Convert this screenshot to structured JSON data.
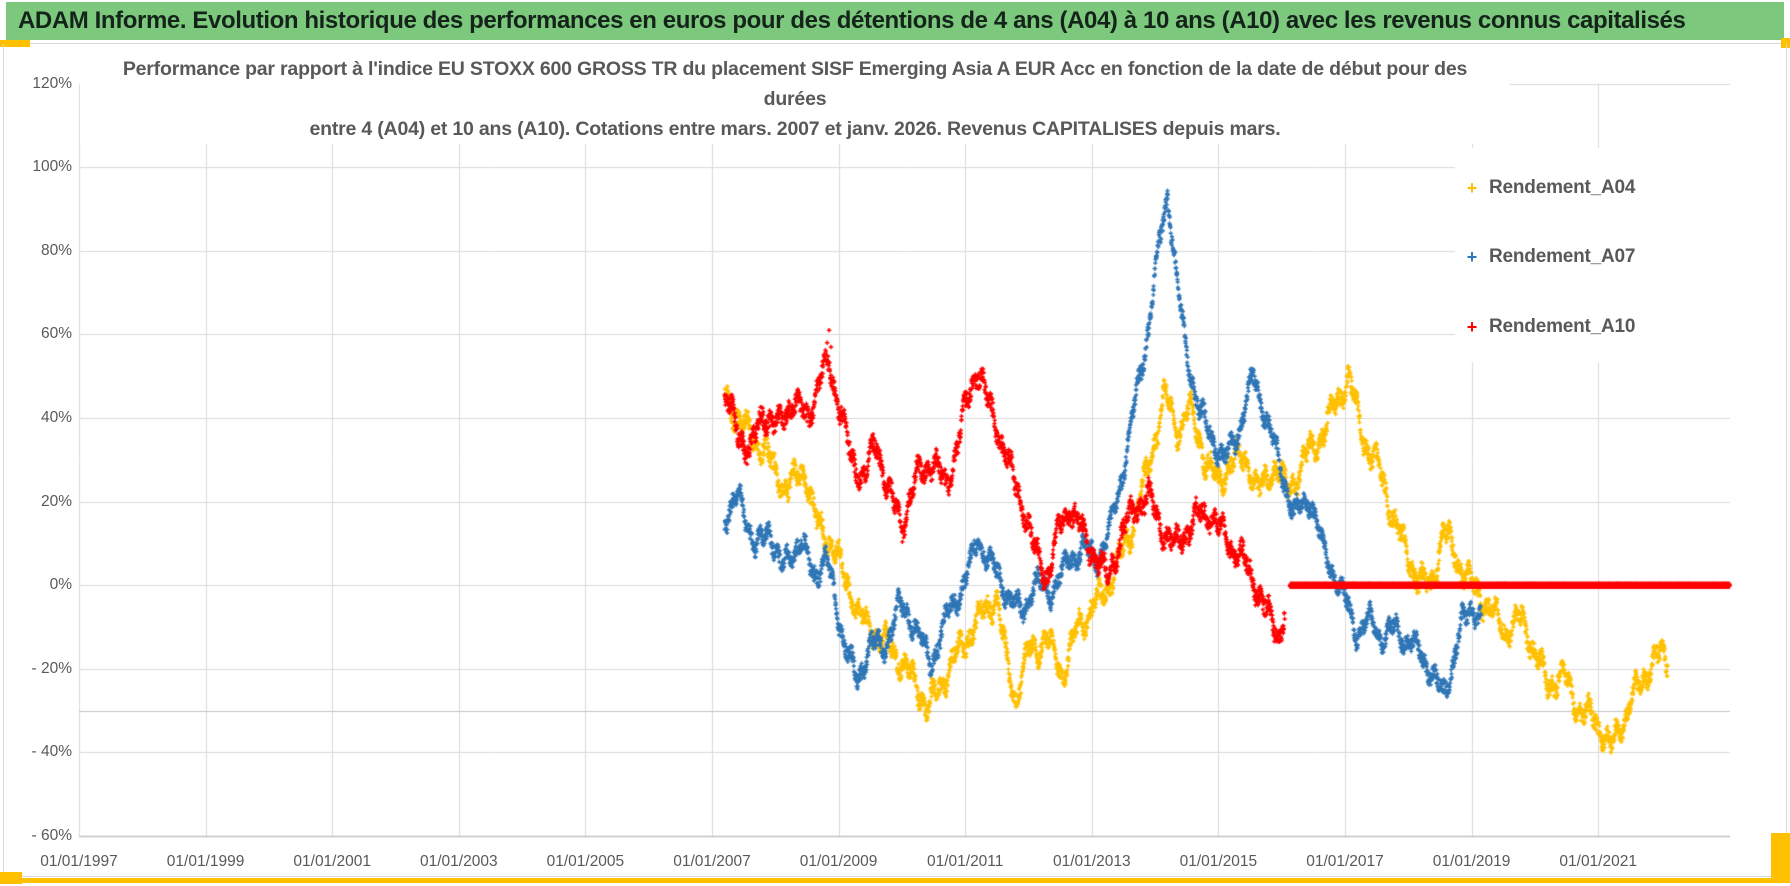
{
  "banner": {
    "text": "ADAM Informe. Evolution historique des performances en euros pour des détentions de 4 ans (A04) à 10 ans (A10) avec les revenus connus capitalisés",
    "bg_color": "#7CC97E"
  },
  "accent_color": "#FFC000",
  "chart_data": {
    "type": "scatter",
    "title_lines": [
      "Performance par rapport à l'indice EU STOXX 600 GROSS TR  du placement SISF Emerging Asia A EUR Acc en fonction de la date de début pour des",
      "durées",
      "entre 4 (A04) et 10 ans (A10). Cotations entre mars. 2007 et janv. 2026. Revenus CAPITALISES depuis mars."
    ],
    "x_axis": {
      "tick_labels": [
        "01/01/1997",
        "01/01/1999",
        "01/01/2001",
        "01/01/2003",
        "01/01/2005",
        "01/01/2007",
        "01/01/2009",
        "01/01/2011",
        "01/01/2013",
        "01/01/2015",
        "01/01/2017",
        "01/01/2019",
        "01/01/2021"
      ],
      "tick_years": [
        1997,
        1999,
        2001,
        2003,
        2005,
        2007,
        2009,
        2011,
        2013,
        2015,
        2017,
        2019,
        2021
      ],
      "range_years": [
        1997.0,
        2023.1
      ],
      "gridlines": true
    },
    "y_axis": {
      "ticks": [
        {
          "label": "120%",
          "value": 120
        },
        {
          "label": "100%",
          "value": 100
        },
        {
          "label": "80%",
          "value": 80
        },
        {
          "label": "60%",
          "value": 60
        },
        {
          "label": "40%",
          "value": 40
        },
        {
          "label": "20%",
          "value": 20
        },
        {
          "label": "0%",
          "value": 0
        },
        {
          "label": "- 20%",
          "value": -20
        },
        {
          "label": "- 40%",
          "value": -40
        },
        {
          "label": "- 60%",
          "value": -60
        }
      ],
      "range": [
        -60,
        120
      ],
      "extra_crossing_line_value": -30,
      "gridlines": true
    },
    "legend": {
      "position": "overlay-right",
      "entries": [
        {
          "label": "Rendement_A04",
          "marker": "+",
          "color": "#FFC000"
        },
        {
          "label": "Rendement_A07",
          "marker": "+",
          "color": "#2E75B6"
        },
        {
          "label": "Rendement_A10",
          "marker": "+",
          "color": "#FF0000"
        }
      ]
    },
    "series": [
      {
        "name": "Rendement_A04",
        "color": "#FFC000",
        "marker": "plus",
        "spread_pct": 3.5,
        "points_per_year": 255,
        "anchors": [
          [
            2007.2,
            45
          ],
          [
            2007.5,
            38
          ],
          [
            2007.8,
            33
          ],
          [
            2008.0,
            27
          ],
          [
            2008.2,
            23
          ],
          [
            2008.45,
            28
          ],
          [
            2008.65,
            15
          ],
          [
            2008.9,
            10
          ],
          [
            2009.1,
            2
          ],
          [
            2009.35,
            -8
          ],
          [
            2009.6,
            -12
          ],
          [
            2009.9,
            -16
          ],
          [
            2010.15,
            -22
          ],
          [
            2010.4,
            -29
          ],
          [
            2010.55,
            -26
          ],
          [
            2010.8,
            -18
          ],
          [
            2011.1,
            -11
          ],
          [
            2011.3,
            -6
          ],
          [
            2011.5,
            -3
          ],
          [
            2011.65,
            -18
          ],
          [
            2011.8,
            -27
          ],
          [
            2012.0,
            -16
          ],
          [
            2012.3,
            -13
          ],
          [
            2012.55,
            -21
          ],
          [
            2012.8,
            -9
          ],
          [
            2013.1,
            -4
          ],
          [
            2013.35,
            3
          ],
          [
            2013.6,
            12
          ],
          [
            2013.9,
            28
          ],
          [
            2014.15,
            46
          ],
          [
            2014.35,
            37
          ],
          [
            2014.55,
            42
          ],
          [
            2014.8,
            30
          ],
          [
            2015.0,
            24
          ],
          [
            2015.2,
            30
          ],
          [
            2015.45,
            30
          ],
          [
            2015.65,
            22
          ],
          [
            2015.9,
            29
          ],
          [
            2016.1,
            22
          ],
          [
            2016.35,
            30
          ],
          [
            2016.6,
            35
          ],
          [
            2016.85,
            43
          ],
          [
            2017.05,
            50
          ],
          [
            2017.3,
            35
          ],
          [
            2017.55,
            27
          ],
          [
            2017.75,
            17
          ],
          [
            2017.95,
            8
          ],
          [
            2018.15,
            2
          ],
          [
            2018.35,
            -1
          ],
          [
            2018.55,
            13
          ],
          [
            2018.75,
            7
          ],
          [
            2019.0,
            0
          ],
          [
            2019.3,
            -6
          ],
          [
            2019.55,
            -11
          ],
          [
            2019.8,
            -8
          ],
          [
            2020.0,
            -16
          ],
          [
            2020.2,
            -24
          ],
          [
            2020.45,
            -21
          ],
          [
            2020.7,
            -30
          ],
          [
            2020.95,
            -32
          ],
          [
            2021.2,
            -39
          ],
          [
            2021.45,
            -30
          ],
          [
            2021.65,
            -24
          ],
          [
            2021.9,
            -17
          ],
          [
            2022.1,
            -18
          ]
        ]
      },
      {
        "name": "Rendement_A07",
        "color": "#2E75B6",
        "marker": "plus",
        "spread_pct": 3.0,
        "points_per_year": 255,
        "anchors": [
          [
            2007.2,
            16
          ],
          [
            2007.45,
            21
          ],
          [
            2007.7,
            8
          ],
          [
            2007.9,
            14
          ],
          [
            2008.1,
            4
          ],
          [
            2008.4,
            11
          ],
          [
            2008.6,
            2
          ],
          [
            2008.8,
            7
          ],
          [
            2009.0,
            -8
          ],
          [
            2009.3,
            -24
          ],
          [
            2009.5,
            -13
          ],
          [
            2009.7,
            -16
          ],
          [
            2009.95,
            -5
          ],
          [
            2010.2,
            -9
          ],
          [
            2010.45,
            -19
          ],
          [
            2010.7,
            -8
          ],
          [
            2011.0,
            1
          ],
          [
            2011.2,
            11
          ],
          [
            2011.45,
            4
          ],
          [
            2011.7,
            -3
          ],
          [
            2011.9,
            -7
          ],
          [
            2012.1,
            1
          ],
          [
            2012.35,
            -2
          ],
          [
            2012.6,
            5
          ],
          [
            2012.85,
            9
          ],
          [
            2013.1,
            6
          ],
          [
            2013.3,
            14
          ],
          [
            2013.5,
            28
          ],
          [
            2013.7,
            45
          ],
          [
            2013.9,
            62
          ],
          [
            2014.05,
            80
          ],
          [
            2014.2,
            94
          ],
          [
            2014.35,
            72
          ],
          [
            2014.5,
            55
          ],
          [
            2014.7,
            42
          ],
          [
            2014.9,
            35
          ],
          [
            2015.1,
            30
          ],
          [
            2015.3,
            36
          ],
          [
            2015.55,
            50
          ],
          [
            2015.8,
            38
          ],
          [
            2016.0,
            27
          ],
          [
            2016.2,
            17
          ],
          [
            2016.45,
            21
          ],
          [
            2016.65,
            9
          ],
          [
            2016.85,
            2
          ],
          [
            2017.05,
            -5
          ],
          [
            2017.2,
            -12
          ],
          [
            2017.4,
            -8
          ],
          [
            2017.6,
            -13
          ],
          [
            2017.8,
            -10
          ],
          [
            2018.0,
            -14
          ],
          [
            2018.2,
            -16
          ],
          [
            2018.4,
            -22
          ],
          [
            2018.55,
            -26
          ],
          [
            2018.7,
            -19
          ],
          [
            2018.85,
            -9
          ],
          [
            2019.0,
            -5
          ],
          [
            2019.15,
            -8
          ]
        ]
      },
      {
        "name": "Rendement_A10",
        "color": "#FF0000",
        "marker": "plus",
        "spread_pct": 3.5,
        "points_per_year": 255,
        "anchors": [
          [
            2007.2,
            44
          ],
          [
            2007.4,
            38
          ],
          [
            2007.6,
            31
          ],
          [
            2007.8,
            42
          ],
          [
            2008.0,
            37
          ],
          [
            2008.25,
            44
          ],
          [
            2008.5,
            40
          ],
          [
            2008.7,
            49
          ],
          [
            2008.85,
            53
          ],
          [
            2009.0,
            44
          ],
          [
            2009.2,
            30
          ],
          [
            2009.4,
            26
          ],
          [
            2009.6,
            34
          ],
          [
            2009.8,
            22
          ],
          [
            2010.0,
            14
          ],
          [
            2010.2,
            25
          ],
          [
            2010.5,
            30
          ],
          [
            2010.7,
            23
          ],
          [
            2010.9,
            35
          ],
          [
            2011.1,
            48
          ],
          [
            2011.2,
            52
          ],
          [
            2011.35,
            44
          ],
          [
            2011.5,
            38
          ],
          [
            2011.7,
            28
          ],
          [
            2011.9,
            20
          ],
          [
            2012.1,
            8
          ],
          [
            2012.3,
            2
          ],
          [
            2012.5,
            14
          ],
          [
            2012.65,
            19
          ],
          [
            2012.9,
            11
          ],
          [
            2013.1,
            6
          ],
          [
            2013.25,
            2
          ],
          [
            2013.5,
            13
          ],
          [
            2013.7,
            19
          ],
          [
            2013.9,
            21
          ],
          [
            2014.1,
            14
          ],
          [
            2014.3,
            9
          ],
          [
            2014.5,
            13
          ],
          [
            2014.7,
            17
          ],
          [
            2014.9,
            17
          ],
          [
            2015.1,
            11
          ],
          [
            2015.35,
            7
          ],
          [
            2015.6,
            0
          ],
          [
            2015.8,
            -8
          ],
          [
            2015.95,
            -12
          ],
          [
            2016.05,
            -6
          ]
        ],
        "outliers": [
          [
            2008.85,
            61
          ],
          [
            2008.82,
            58
          ],
          [
            2008.88,
            57
          ]
        ],
        "flat_segment": {
          "from": 2016.13,
          "to": 2023.08,
          "value": 0
        }
      }
    ]
  }
}
